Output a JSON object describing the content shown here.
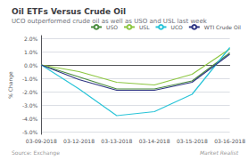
{
  "chart_data": {
    "type": "line",
    "title": "Oil ETFs Versus Crude Oil",
    "subtitle": "UCO outperformed crude oil as well as USO and USL last week",
    "source": "Source: Exchange",
    "watermark": "Market Realist",
    "categories": [
      "03-09-2018",
      "03-12-2018",
      "03-13-2018",
      "03-14-2018",
      "03-15-2018",
      "03-16-2018"
    ],
    "series": [
      {
        "name": "USO",
        "color": "#4a8c3f",
        "values": [
          0.0,
          -0.009,
          -0.018,
          -0.018,
          -0.012,
          0.009
        ]
      },
      {
        "name": "USL",
        "color": "#8dc641",
        "values": [
          0.0,
          -0.005,
          -0.013,
          -0.015,
          -0.007,
          0.012
        ]
      },
      {
        "name": "UCO",
        "color": "#29c4d8",
        "values": [
          0.0,
          -0.018,
          -0.038,
          -0.035,
          -0.022,
          0.013
        ]
      },
      {
        "name": "WTI Crude Oil",
        "color": "#2e3583",
        "values": [
          0.0,
          -0.011,
          -0.019,
          -0.019,
          -0.013,
          0.008
        ]
      }
    ],
    "ylabel": "% Change",
    "ylim": [
      -0.052,
      0.022
    ],
    "yticks": [
      {
        "value": -0.05,
        "label": "-5.0%"
      },
      {
        "value": -0.04,
        "label": "-4.0%"
      },
      {
        "value": -0.03,
        "label": "-3.0%"
      },
      {
        "value": -0.02,
        "label": "-2.0%"
      },
      {
        "value": -0.01,
        "label": "-1.0%"
      },
      {
        "value": 0.0,
        "label": "0.0%"
      },
      {
        "value": 0.01,
        "label": "1.0%"
      },
      {
        "value": 0.02,
        "label": "2.0%"
      }
    ],
    "grid": true,
    "legend": "upper right"
  }
}
